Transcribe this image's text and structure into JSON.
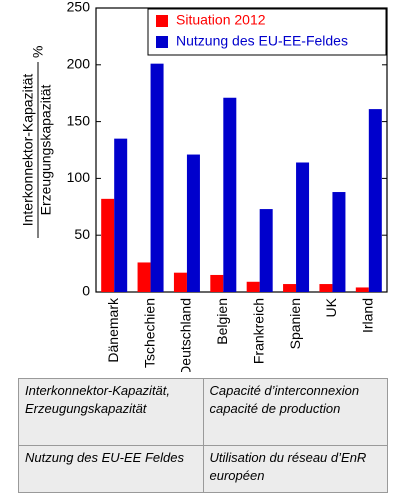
{
  "chart_data": {
    "type": "bar",
    "ylabel_numerator": "Interkonnektor-Kapazität",
    "ylabel_denominator": "Erzeugungskapazität",
    "ylabel_unit": "%",
    "categories": [
      "Dänemark",
      "Tschechien",
      "Deutschland",
      "Belgien",
      "Frankreich",
      "Spanien",
      "UK",
      "Irland"
    ],
    "series": [
      {
        "name": "Situation 2012",
        "color": "#ff0000",
        "values": [
          82,
          26,
          17,
          15,
          9,
          7,
          7,
          4
        ]
      },
      {
        "name": "Nutzung des EU-EE-Feldes",
        "color": "#0000cc",
        "values": [
          135,
          201,
          121,
          171,
          73,
          114,
          88,
          161
        ]
      }
    ],
    "ylim": [
      0,
      250
    ],
    "yticks": [
      0,
      50,
      100,
      150,
      200,
      250
    ],
    "legend": "upper right"
  },
  "table": {
    "rows": [
      [
        "Interkonnektor-Kapazität, Erzeugungskapazität",
        "Capacité d’interconnexion capacité de production"
      ],
      [
        "Nutzung des EU-EE Feldes",
        "Utilisation du réseau d’EnR européen"
      ]
    ]
  }
}
